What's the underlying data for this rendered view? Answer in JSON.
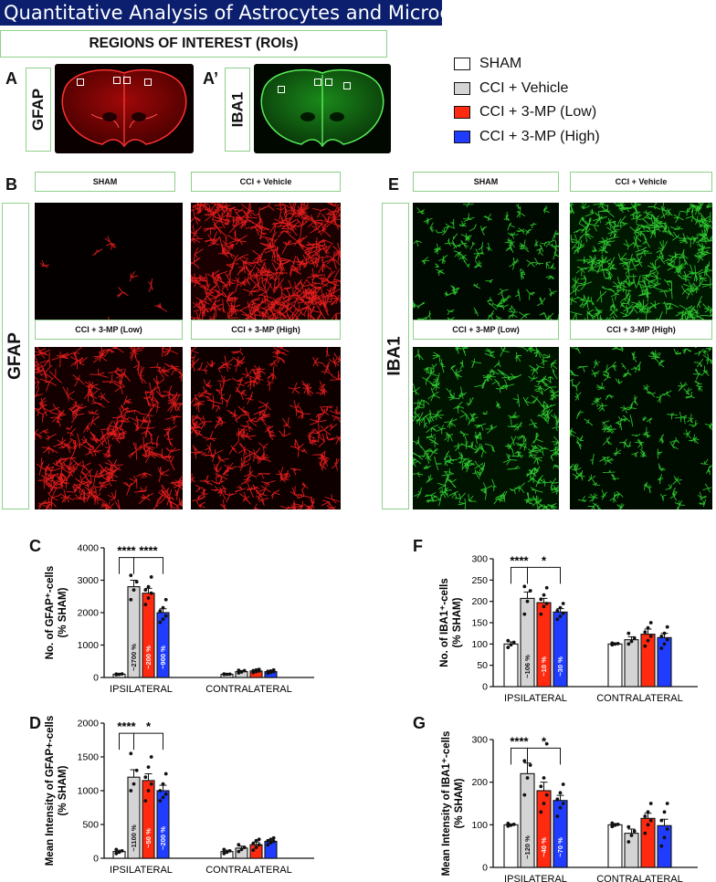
{
  "page_title": "Quantitative Analysis of Astrocytes and Microglia",
  "roi_title": "REGIONS OF INTEREST (ROIs)",
  "panels": {
    "A": "A",
    "A_prime": "A’",
    "B": "B",
    "E": "E",
    "C": "C",
    "D": "D",
    "F": "F",
    "G": "G"
  },
  "stains": {
    "gfap": "GFAP",
    "iba1": "IBA1"
  },
  "legend": [
    {
      "label": "SHAM",
      "color": "#ffffff"
    },
    {
      "label": "CCI + Vehicle",
      "color": "#d4d4d4"
    },
    {
      "label": "CCI + 3-MP (Low)",
      "color": "#ff2a10"
    },
    {
      "label": "CCI + 3-MP (High)",
      "color": "#1f3cff"
    }
  ],
  "gfap_conditions": [
    "SHAM",
    "CCI + Vehicle",
    "CCI + 3-MP (Low)",
    "CCI + 3-MP (High)"
  ],
  "iba1_conditions": [
    "SHAM",
    "CCI + Vehicle",
    "CCI  + 3-MP (Low)",
    "CCI + 3-MP (High)"
  ],
  "colors": {
    "gfap_stain": "#ff2020",
    "iba1_stain": "#33dd33",
    "title_bg": "#0b1f6e",
    "box_border": "#8fd08a"
  },
  "chart_data": [
    {
      "id": "C",
      "type": "bar",
      "ylabel_lines": [
        "No. of GFAP⁺-cells",
        "(% SHAM)"
      ],
      "ylim": [
        0,
        4000
      ],
      "yticks": [
        0,
        1000,
        2000,
        3000,
        4000
      ],
      "groups": [
        "IPSILATERAL",
        "CONTRALATERAL"
      ],
      "series": [
        {
          "name": "SHAM",
          "values": [
            100,
            100
          ],
          "errors": [
            20,
            15
          ],
          "points": [
            [
              85,
              95,
              110,
              105
            ],
            [
              90,
              95,
              100,
              110
            ]
          ]
        },
        {
          "name": "CCI + Vehicle",
          "values": [
            2800,
            180
          ],
          "errors": [
            200,
            35
          ],
          "points": [
            [
              2400,
              2700,
              2950,
              3150
            ],
            [
              140,
              170,
              210,
              220
            ]
          ]
        },
        {
          "name": "CCI + 3-MP (Low)",
          "values": [
            2600,
            200
          ],
          "errors": [
            150,
            30
          ],
          "points": [
            [
              2250,
              2450,
              2600,
              2700,
              2800,
              3100
            ],
            [
              150,
              180,
              200,
              210,
              230,
              250
            ]
          ]
        },
        {
          "name": "CCI + 3-MP (High)",
          "values": [
            2000,
            180
          ],
          "errors": [
            120,
            30
          ],
          "points": [
            [
              1700,
              1800,
              1900,
              2050,
              2150,
              2400
            ],
            [
              130,
              160,
              180,
              190,
              200,
              230
            ]
          ]
        }
      ],
      "bar_labels": [
        "",
        "~2700 %",
        "~200 %",
        "~900 %"
      ],
      "significance": [
        {
          "from": 0,
          "to": 1,
          "label": "****",
          "level": 3700
        },
        {
          "from": 1,
          "to": 3,
          "label": "****",
          "level": 3700
        }
      ]
    },
    {
      "id": "D",
      "type": "bar",
      "ylabel_lines": [
        "Mean Intensity of GFAP+-cells",
        "(% SHAM)"
      ],
      "ylim": [
        0,
        2000
      ],
      "yticks": [
        0,
        500,
        1000,
        1500,
        2000
      ],
      "groups": [
        "IPSILATERAL",
        "CONTRALATERAL"
      ],
      "series": [
        {
          "name": "SHAM",
          "values": [
            100,
            100
          ],
          "errors": [
            20,
            20
          ],
          "points": [
            [
              70,
              90,
              110,
              130
            ],
            [
              70,
              90,
              110,
              130
            ]
          ]
        },
        {
          "name": "CCI + Vehicle",
          "values": [
            1200,
            150
          ],
          "errors": [
            110,
            30
          ],
          "points": [
            [
              1000,
              1100,
              1300,
              1550
            ],
            [
              100,
              130,
              160,
              200
            ]
          ]
        },
        {
          "name": "CCI + 3-MP (Low)",
          "values": [
            1150,
            200
          ],
          "errors": [
            100,
            40
          ],
          "points": [
            [
              850,
              1000,
              1100,
              1200,
              1350,
              1500
            ],
            [
              120,
              160,
              200,
              220,
              260,
              280
            ]
          ]
        },
        {
          "name": "CCI + 3-MP (High)",
          "values": [
            1000,
            250
          ],
          "errors": [
            80,
            25
          ],
          "points": [
            [
              850,
              900,
              950,
              1000,
              1100,
              1250
            ],
            [
              200,
              230,
              250,
              260,
              280,
              300
            ]
          ]
        }
      ],
      "bar_labels": [
        "",
        "~1100 %",
        "~50 %",
        "~200 %"
      ],
      "significance": [
        {
          "from": 0,
          "to": 1,
          "label": "****",
          "level": 1850
        },
        {
          "from": 1,
          "to": 3,
          "label": "*",
          "level": 1850
        }
      ]
    },
    {
      "id": "F",
      "type": "bar",
      "ylabel_lines": [
        "No. of IBA1⁺-cells",
        "(% SHAM)"
      ],
      "ylim": [
        0,
        300
      ],
      "yticks": [
        0,
        50,
        100,
        150,
        200,
        250,
        300
      ],
      "groups": [
        "IPSILATERAL",
        "CONTRALATERAL"
      ],
      "series": [
        {
          "name": "SHAM",
          "values": [
            100,
            100
          ],
          "errors": [
            5,
            2
          ],
          "points": [
            [
              92,
              98,
              104,
              108
            ],
            [
              98,
              100,
              101,
              102
            ]
          ]
        },
        {
          "name": "CCI + Vehicle",
          "values": [
            207,
            110
          ],
          "errors": [
            15,
            7
          ],
          "points": [
            [
              170,
              200,
              225,
              235
            ],
            [
              100,
              106,
              114,
              125
            ]
          ]
        },
        {
          "name": "CCI + 3-MP (Low)",
          "values": [
            197,
            123
          ],
          "errors": [
            10,
            12
          ],
          "points": [
            [
              170,
              188,
              195,
              205,
              215,
              232
            ],
            [
              95,
              108,
              118,
              128,
              138,
              150
            ]
          ]
        },
        {
          "name": "CCI + 3-MP (High)",
          "values": [
            175,
            115
          ],
          "errors": [
            8,
            10
          ],
          "points": [
            [
              158,
              165,
              172,
              178,
              185,
              195
            ],
            [
              90,
              100,
              110,
              118,
              125,
              140
            ]
          ]
        }
      ],
      "bar_labels": [
        "",
        "~106 %",
        "~10 %",
        "~30 %"
      ],
      "significance": [
        {
          "from": 0,
          "to": 1,
          "label": "****",
          "level": 280
        },
        {
          "from": 1,
          "to": 3,
          "label": "*",
          "level": 280
        }
      ]
    },
    {
      "id": "G",
      "type": "bar",
      "ylabel_lines": [
        "Mean Intensity of IBA1⁺-cells",
        "(% SHAM)"
      ],
      "ylim": [
        0,
        300
      ],
      "yticks": [
        0,
        100,
        200,
        300
      ],
      "groups": [
        "IPSILATERAL",
        "CONTRALATERAL"
      ],
      "series": [
        {
          "name": "SHAM",
          "values": [
            100,
            100
          ],
          "errors": [
            2,
            3
          ],
          "points": [
            [
              97,
              99,
              101,
              103
            ],
            [
              96,
              99,
              101,
              104
            ]
          ]
        },
        {
          "name": "CCI + Vehicle",
          "values": [
            220,
            80
          ],
          "errors": [
            25,
            10
          ],
          "points": [
            [
              170,
              210,
              240,
              250
            ],
            [
              60,
              75,
              85,
              95
            ]
          ]
        },
        {
          "name": "CCI + 3-MP (Low)",
          "values": [
            180,
            115
          ],
          "errors": [
            20,
            12
          ],
          "points": [
            [
              130,
              150,
              170,
              190,
              210,
              290
            ],
            [
              80,
              100,
              110,
              120,
              130,
              150
            ]
          ]
        },
        {
          "name": "CCI + 3-MP (High)",
          "values": [
            157,
            98
          ],
          "errors": [
            12,
            15
          ],
          "points": [
            [
              120,
              140,
              150,
              160,
              175,
              195
            ],
            [
              50,
              70,
              90,
              110,
              130,
              150
            ]
          ]
        }
      ],
      "bar_labels": [
        "",
        "~120 %",
        "~40 %",
        "~70 %"
      ],
      "significance": [
        {
          "from": 0,
          "to": 1,
          "label": "****",
          "level": 280
        },
        {
          "from": 1,
          "to": 3,
          "label": "*",
          "level": 280
        }
      ]
    }
  ]
}
